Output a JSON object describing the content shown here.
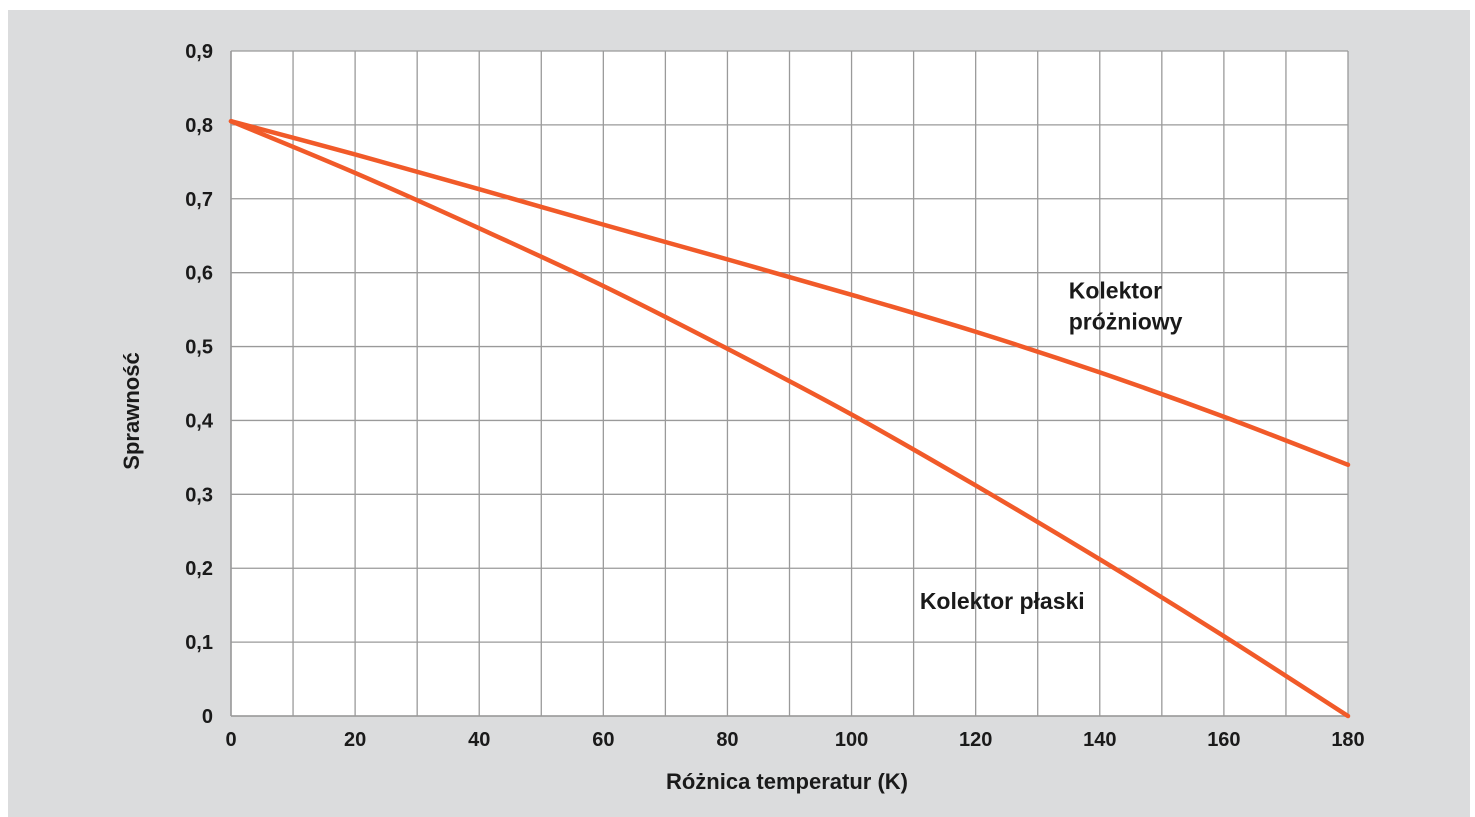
{
  "chart_data": {
    "type": "line",
    "title": "",
    "xlabel": "Różnica temperatur (K)",
    "ylabel": "Sprawność",
    "xlim": [
      0,
      180
    ],
    "ylim": [
      0,
      0.9
    ],
    "x_ticks": [
      0,
      20,
      40,
      60,
      80,
      100,
      120,
      140,
      160,
      180
    ],
    "x_tick_labels": [
      "0",
      "20",
      "40",
      "60",
      "80",
      "100",
      "120",
      "140",
      "160",
      "180"
    ],
    "x_minor_grid_step": 10,
    "y_ticks": [
      0,
      0.1,
      0.2,
      0.3,
      0.4,
      0.5,
      0.6,
      0.7,
      0.8,
      0.9
    ],
    "y_tick_labels": [
      "0",
      "0,1",
      "0,2",
      "0,3",
      "0,4",
      "0,5",
      "0,6",
      "0,7",
      "0,8",
      "0,9"
    ],
    "grid": true,
    "legend": "none",
    "series": [
      {
        "name": "Kolektor próżniowy",
        "color": "#f15a29",
        "x": [
          0,
          20,
          40,
          60,
          80,
          100,
          120,
          140,
          160,
          180
        ],
        "y": [
          0.805,
          0.76,
          0.713,
          0.665,
          0.618,
          0.57,
          0.52,
          0.465,
          0.405,
          0.34
        ]
      },
      {
        "name": "Kolektor płaski",
        "color": "#f15a29",
        "x": [
          0,
          20,
          40,
          60,
          80,
          100,
          120,
          140,
          160,
          180
        ],
        "y": [
          0.805,
          0.735,
          0.66,
          0.582,
          0.497,
          0.408,
          0.312,
          0.212,
          0.108,
          0
        ]
      }
    ],
    "annotations": [
      {
        "lines": [
          "Kolektor",
          "próżniowy"
        ],
        "x": 135,
        "y": 0.565
      },
      {
        "lines": [
          "Kolektor płaski"
        ],
        "x": 111,
        "y": 0.145
      }
    ]
  },
  "colors": {
    "background": "#dbdcdd",
    "plot_area": "#ffffff",
    "grid": "#9a9a9a",
    "line": "#f15a29",
    "text": "#1a1a1a"
  }
}
